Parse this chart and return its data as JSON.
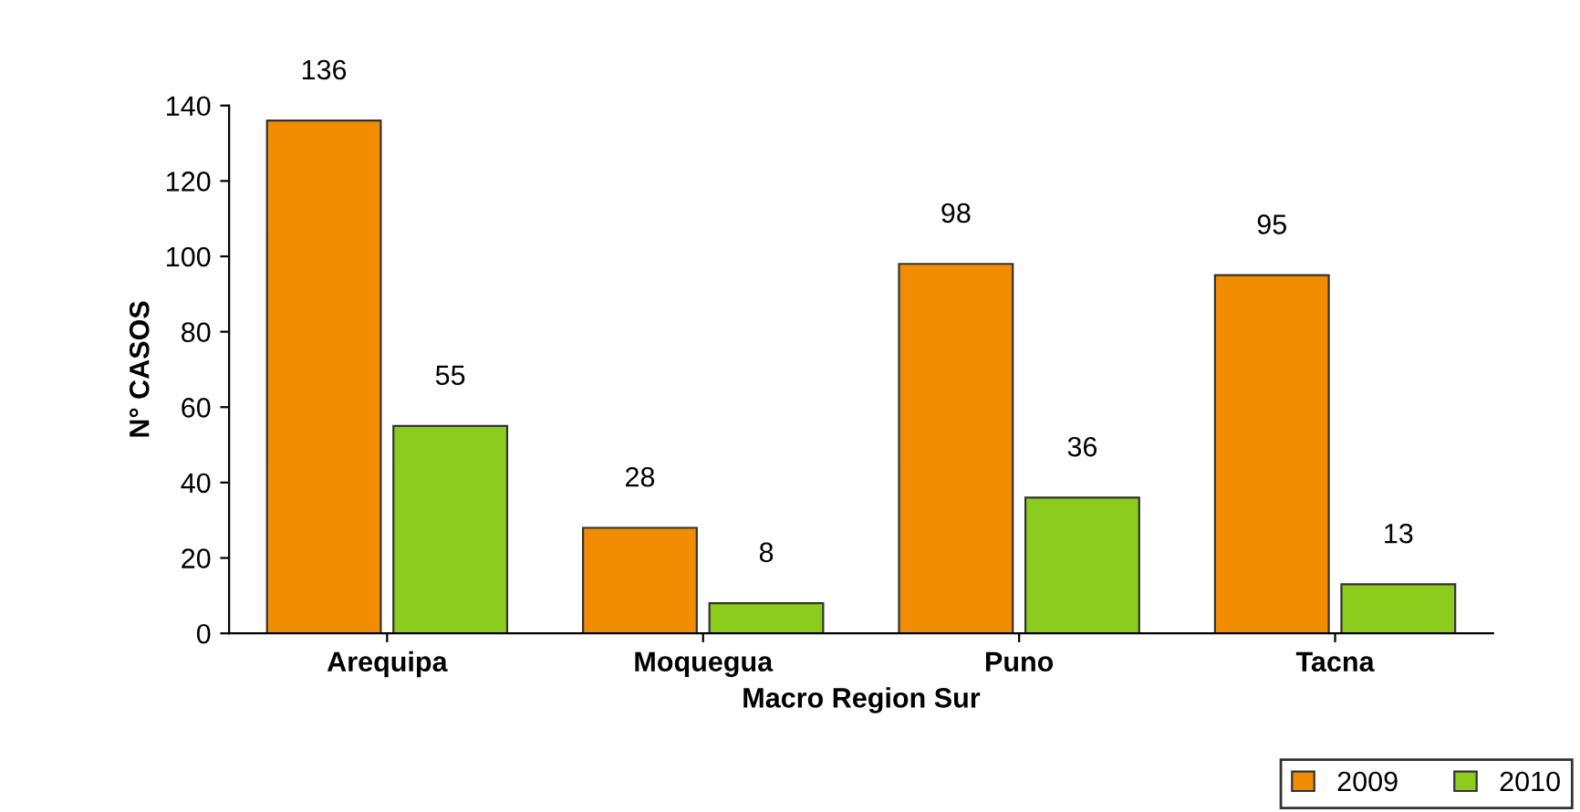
{
  "chart_data": {
    "type": "bar",
    "xlabel": "Macro Region Sur",
    "ylabel": "N° CASOS",
    "categories": [
      "Arequipa",
      "Moquegua",
      "Puno",
      "Tacna"
    ],
    "series": [
      {
        "name": "2009",
        "color": "#f28c00",
        "values": [
          136,
          28,
          98,
          95
        ]
      },
      {
        "name": "2010",
        "color": "#8ccc1c",
        "values": [
          55,
          8,
          36,
          13
        ]
      }
    ],
    "ylim": [
      0,
      140
    ],
    "yticks": [
      0,
      20,
      40,
      60,
      80,
      100,
      120,
      140
    ],
    "data_labels": true,
    "legend": "bottom right",
    "grid": false
  }
}
